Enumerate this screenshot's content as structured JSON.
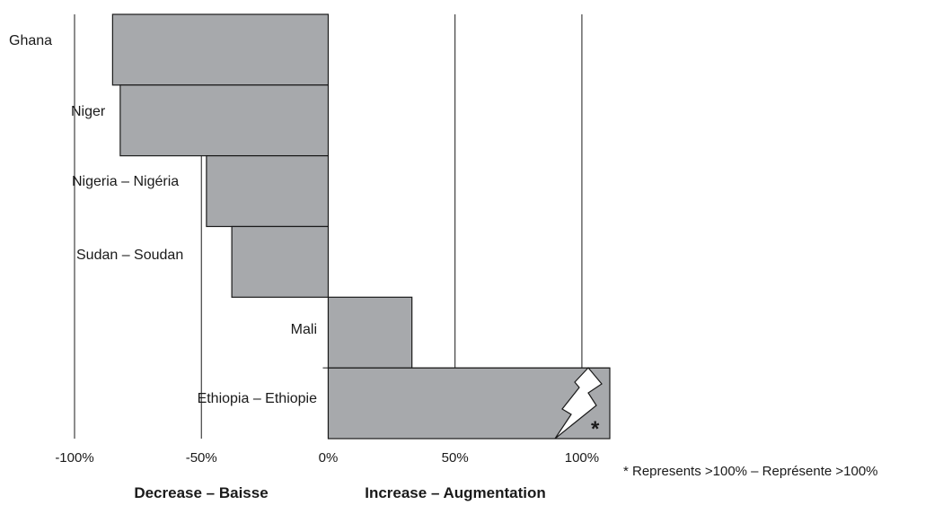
{
  "chart_data": {
    "type": "bar",
    "orientation": "horizontal",
    "categories": [
      "Ghana",
      "Niger",
      "Nigeria – Nigéria",
      "Sudan – Soudan",
      "Mali",
      "Ethiopia – Ethiopie"
    ],
    "values": [
      -85,
      -82,
      -48,
      -38,
      33,
      111
    ],
    "xlim": [
      -100,
      111
    ],
    "x_ticks": [
      -100,
      -50,
      0,
      50,
      100
    ],
    "x_tick_labels": [
      "-100%",
      "-50%",
      "0%",
      "50%",
      "100%"
    ],
    "grid": "vertical lines at -100%, -50%, 50%, 100%",
    "axis_titles": {
      "left": "Decrease – Baisse",
      "right": "Increase – Augmentation"
    },
    "truncated_marker": "*",
    "footnote": "* Represents >100% – Représente >100%",
    "colors": {
      "bar": "#a7a9ac",
      "line": "#1a1a1a"
    }
  }
}
